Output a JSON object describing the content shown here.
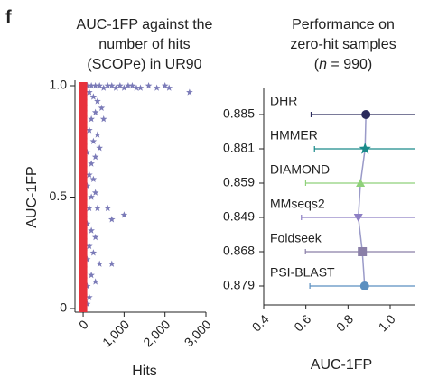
{
  "panel": "f",
  "chart_data": [
    {
      "type": "scatter",
      "title": [
        "AUC-1FP against the",
        "number of hits",
        "(SCOPe) in UR90"
      ],
      "xlabel": "Hits",
      "ylabel": "AUC-1FP",
      "xlim": [
        -200,
        3000
      ],
      "ylim": [
        0,
        1
      ],
      "xticks": [
        0,
        {
          "value": 1000,
          "label": "1,000"
        },
        {
          "value": 2000,
          "label": "2,000"
        },
        {
          "value": 3000,
          "label": "3,000"
        }
      ],
      "yticks": [
        0,
        0.5,
        {
          "value": 1,
          "label": "1.0"
        }
      ],
      "series": [
        {
          "color": "#e8323c",
          "marker": "square",
          "x": [
            0,
            0,
            0,
            0,
            0,
            0,
            0,
            0,
            0,
            0,
            0,
            0,
            0,
            0,
            0,
            0,
            0,
            0,
            0,
            0,
            0,
            0,
            0,
            0,
            0,
            0,
            0,
            0,
            0,
            0,
            0,
            0,
            0,
            0,
            0,
            0,
            0,
            0,
            0,
            0,
            0
          ],
          "values": [
            0,
            0.025,
            0.05,
            0.075,
            0.1,
            0.125,
            0.15,
            0.175,
            0.2,
            0.225,
            0.25,
            0.275,
            0.3,
            0.325,
            0.35,
            0.375,
            0.4,
            0.425,
            0.45,
            0.475,
            0.5,
            0.525,
            0.55,
            0.575,
            0.6,
            0.625,
            0.65,
            0.675,
            0.7,
            0.725,
            0.75,
            0.775,
            0.8,
            0.825,
            0.85,
            0.875,
            0.9,
            0.925,
            0.95,
            0.975,
            1
          ]
        },
        {
          "color": "#7b7bb8",
          "marker": "star",
          "x": [
            100,
            200,
            300,
            400,
            500,
            600,
            700,
            800,
            900,
            1000,
            1100,
            1200,
            1300,
            1400,
            1600,
            1800,
            2000,
            2100,
            2600,
            150,
            250,
            350,
            450,
            300,
            200,
            500,
            150,
            350,
            250,
            400,
            100,
            300,
            200,
            150,
            250,
            100,
            300,
            200,
            150,
            350,
            600,
            1000,
            700,
            100,
            200,
            300,
            150,
            250,
            100,
            400,
            700,
            200,
            300,
            100,
            150,
            100
          ],
          "values": [
            1,
            1,
            1,
            1,
            0.99,
            1,
            1,
            0.99,
            1,
            0.99,
            1,
            1,
            0.99,
            0.99,
            1,
            0.99,
            1,
            0.99,
            0.97,
            0.97,
            0.95,
            0.93,
            0.9,
            0.88,
            0.85,
            0.85,
            0.8,
            0.78,
            0.75,
            0.72,
            0.7,
            0.68,
            0.65,
            0.6,
            0.58,
            0.55,
            0.52,
            0.5,
            0.45,
            0.45,
            0.45,
            0.42,
            0.4,
            0.38,
            0.35,
            0.32,
            0.28,
            0.25,
            0.22,
            0.2,
            0.2,
            0.15,
            0.12,
            0.1,
            0.05,
            0.02
          ]
        }
      ]
    },
    {
      "type": "dot",
      "title": [
        "Performance on",
        "zero-hit samples",
        [
          "(",
          "n",
          " = 990)"
        ]
      ],
      "xlabel": "AUC-1FP",
      "xlim": [
        0.4,
        1.12
      ],
      "xticks": [
        0.4,
        0.6,
        0.8,
        {
          "value": 1,
          "label": "1.0"
        }
      ],
      "categories": [
        "DHR",
        "HMMER",
        "DIAMOND",
        "MMseqs2",
        "Foldseek",
        "PSI-BLAST"
      ],
      "values": [
        0.885,
        0.881,
        0.859,
        0.849,
        0.868,
        0.879
      ],
      "errors": [
        0.26,
        0.24,
        0.26,
        0.27,
        0.27,
        0.26
      ],
      "colors": [
        "#2b2b5c",
        "#1a8a8a",
        "#8fd17a",
        "#8d7fc4",
        "#8a7fa8",
        "#5b8fc0"
      ],
      "markers": [
        "circle",
        "star",
        "triangle-up",
        "triangle-down",
        "square",
        "circle"
      ],
      "line_color": "#9a9ac8"
    }
  ]
}
